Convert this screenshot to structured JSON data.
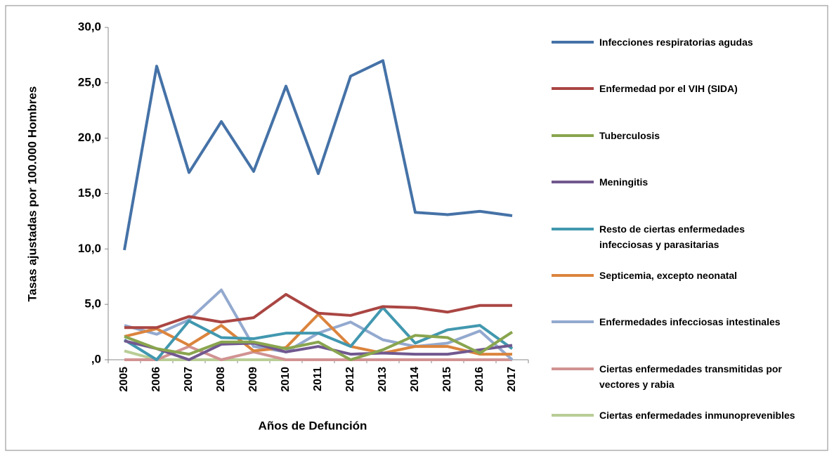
{
  "chart_data": {
    "type": "line",
    "xlabel": "Años de Defunción",
    "ylabel": "Tasas ajustadas por 100.000 Hombres",
    "categories": [
      "2005",
      "2006",
      "2007",
      "2008",
      "2009",
      "2010",
      "2011",
      "2012",
      "2013",
      "2014",
      "2015",
      "2016",
      "2017"
    ],
    "ylim": [
      0,
      30
    ],
    "yticks": [
      {
        "value": 0,
        "label": ",0"
      },
      {
        "value": 5,
        "label": "5,0"
      },
      {
        "value": 10,
        "label": "10,0"
      },
      {
        "value": 15,
        "label": "15,0"
      },
      {
        "value": 20,
        "label": "20,0"
      },
      {
        "value": 25,
        "label": "25,0"
      },
      {
        "value": 30,
        "label": "30,0"
      }
    ],
    "grid": false,
    "legend": "right",
    "series": [
      {
        "name": "Infecciones respiratorias agudas",
        "color": "#4572a7",
        "values": [
          9.9,
          26.5,
          16.9,
          21.5,
          17.0,
          24.7,
          16.8,
          25.6,
          27.0,
          13.3,
          13.1,
          13.4,
          13.0
        ]
      },
      {
        "name": "Enfermedad por el VIH (SIDA)",
        "color": "#aa4643",
        "values": [
          2.9,
          2.9,
          3.9,
          3.4,
          3.8,
          5.9,
          4.2,
          4.0,
          4.8,
          4.7,
          4.3,
          4.9,
          4.9
        ]
      },
      {
        "name": "Tuberculosis",
        "color": "#89a54e",
        "values": [
          2.1,
          1.0,
          0.5,
          1.6,
          1.6,
          1.0,
          1.6,
          0.0,
          0.9,
          2.2,
          2.0,
          0.6,
          2.5
        ]
      },
      {
        "name": "Meningitis",
        "color": "#71588f",
        "values": [
          1.7,
          1.0,
          0.0,
          1.4,
          1.5,
          0.7,
          1.2,
          0.5,
          0.6,
          0.5,
          0.5,
          0.9,
          1.3
        ]
      },
      {
        "name": "Resto de ciertas enfermedades infecciosas y parasitarias",
        "color": "#4198af",
        "values": [
          1.8,
          0.0,
          3.5,
          2.0,
          1.9,
          2.4,
          2.4,
          1.2,
          4.7,
          1.5,
          2.7,
          3.1,
          1.0
        ]
      },
      {
        "name": "Septicemia, excepto neonatal",
        "color": "#db843d",
        "values": [
          2.1,
          2.8,
          1.3,
          3.1,
          0.8,
          1.1,
          4.1,
          1.2,
          0.6,
          1.2,
          1.2,
          0.5,
          0.5
        ]
      },
      {
        "name": "Enfermedades infecciosas intestinales",
        "color": "#93a9cf",
        "values": [
          3.1,
          2.3,
          3.6,
          6.3,
          1.2,
          0.7,
          2.4,
          3.4,
          1.8,
          1.2,
          1.5,
          2.6,
          0.0
        ]
      },
      {
        "name": "Ciertas enfermedades transmitidas por vectores y rabia",
        "color": "#d19392",
        "values": [
          0.0,
          0.0,
          1.2,
          0.0,
          0.7,
          0.0,
          0.0,
          0.0,
          0.0,
          0.0,
          0.0,
          0.0,
          0.0
        ]
      },
      {
        "name": "Ciertas enfermedades inmunoprevenibles",
        "color": "#b9cd96",
        "values": [
          0.8,
          0.0,
          0.0,
          0.0,
          0.0,
          0.0,
          0.0,
          0.0,
          0.0,
          0.0,
          0.0,
          0.0,
          0.0
        ]
      }
    ]
  }
}
